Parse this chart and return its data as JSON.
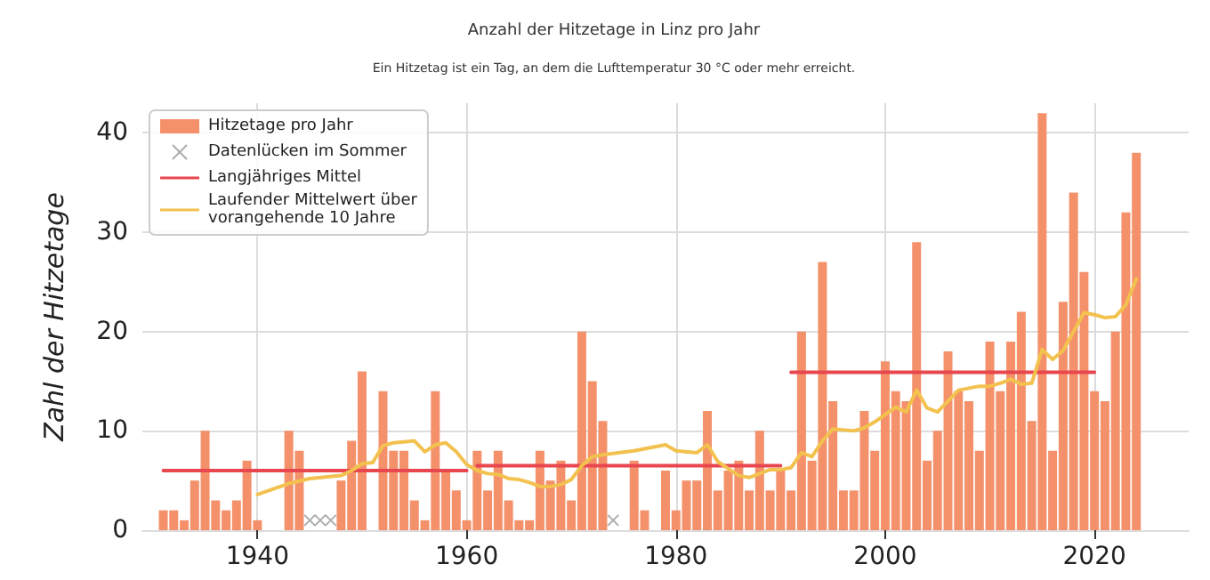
{
  "chart_data": {
    "type": "bar",
    "title": "Anzahl der Hitzetage in Linz pro Jahr",
    "subtitle": "Ein Hitzetag ist ein Tag, an dem die Lufttemperatur 30 °C oder mehr erreicht.",
    "ylabel": "Zahl der Hitzetage",
    "x": [
      1931,
      1932,
      1933,
      1934,
      1935,
      1936,
      1937,
      1938,
      1939,
      1940,
      1941,
      1942,
      1943,
      1944,
      1945,
      1946,
      1947,
      1948,
      1949,
      1950,
      1951,
      1952,
      1953,
      1954,
      1955,
      1956,
      1957,
      1958,
      1959,
      1960,
      1961,
      1962,
      1963,
      1964,
      1965,
      1966,
      1967,
      1968,
      1969,
      1970,
      1971,
      1972,
      1973,
      1974,
      1975,
      1976,
      1977,
      1978,
      1979,
      1980,
      1981,
      1982,
      1983,
      1984,
      1985,
      1986,
      1987,
      1988,
      1989,
      1990,
      1991,
      1992,
      1993,
      1994,
      1995,
      1996,
      1997,
      1998,
      1999,
      2000,
      2001,
      2002,
      2003,
      2004,
      2005,
      2006,
      2007,
      2008,
      2009,
      2010,
      2011,
      2012,
      2013,
      2014,
      2015,
      2016,
      2017,
      2018,
      2019,
      2020,
      2021,
      2022,
      2023,
      2024
    ],
    "series": [
      {
        "name": "Hitzetage pro Jahr",
        "color": "#f4916b",
        "values": [
          2,
          2,
          1,
          5,
          10,
          3,
          2,
          3,
          7,
          1,
          0,
          0,
          10,
          8,
          null,
          null,
          null,
          5,
          9,
          16,
          0,
          14,
          8,
          8,
          3,
          1,
          14,
          6,
          4,
          1,
          8,
          4,
          8,
          3,
          1,
          1,
          8,
          5,
          7,
          3,
          20,
          15,
          11,
          null,
          0,
          7,
          2,
          0,
          6,
          2,
          5,
          5,
          12,
          4,
          6,
          7,
          4,
          10,
          4,
          6,
          4,
          20,
          7,
          27,
          13,
          4,
          4,
          12,
          8,
          17,
          14,
          13,
          29,
          7,
          10,
          18,
          14,
          13,
          8,
          19,
          14,
          19,
          22,
          11,
          42,
          8,
          23,
          34,
          26,
          14,
          13,
          20,
          32,
          38
        ]
      },
      {
        "name": "Datenlücken im Sommer",
        "type": "scatter",
        "marker": "cross",
        "color": "#999999",
        "x": [
          1945,
          1946,
          1947,
          1974
        ],
        "values": [
          1,
          1,
          1,
          1
        ]
      },
      {
        "name": "Langjähriges Mittel",
        "type": "line",
        "color": "#e8474f",
        "x": [
          1931,
          1960,
          1960.5,
          1961,
          1990,
          1990.5,
          1991,
          2020
        ],
        "values": [
          6,
          6,
          null,
          6.5,
          6.5,
          null,
          15.9,
          15.9
        ]
      },
      {
        "name": "Laufender Mittelwert über\nvorangehende 10 Jahre",
        "type": "line",
        "color": "#f2c14e",
        "x": [
          1940,
          1943,
          1945,
          1948,
          1949,
          1950,
          1951,
          1952,
          1953,
          1954,
          1955,
          1956,
          1957,
          1958,
          1959,
          1960,
          1961,
          1962,
          1963,
          1964,
          1965,
          1966,
          1967,
          1968,
          1969,
          1970,
          1971,
          1972,
          1973,
          1976,
          1979,
          1980,
          1982,
          1983,
          1984,
          1986,
          1987,
          1988,
          1989,
          1990,
          1991,
          1992,
          1993,
          1994,
          1995,
          1997,
          1998,
          1999,
          2001,
          2002,
          2003,
          2004,
          2005,
          2006,
          2007,
          2009,
          2010,
          2011,
          2012,
          2013,
          2014,
          2015,
          2016,
          2017,
          2018,
          2019,
          2020,
          2021,
          2022,
          2023,
          2024
        ],
        "values": [
          3.6,
          4.7,
          5.2,
          5.5,
          6,
          6.7,
          6.8,
          8.5,
          8.8,
          8.9,
          9,
          7.9,
          8.6,
          8.8,
          7.9,
          6.6,
          6,
          5.7,
          5.6,
          5.2,
          5.1,
          4.8,
          4.4,
          4.4,
          4.6,
          5.1,
          6.5,
          7.4,
          7.6,
          8,
          8.6,
          8,
          7.8,
          8.6,
          6.9,
          5.5,
          5.3,
          5.7,
          6.1,
          6.1,
          6.3,
          7.8,
          7.4,
          9,
          10.2,
          10,
          10.3,
          10.9,
          12.4,
          11.9,
          14.1,
          12.3,
          11.9,
          13,
          14.1,
          14.5,
          14.5,
          14.8,
          15.2,
          14.7,
          14.8,
          18.2,
          17.2,
          18.1,
          20,
          21.9,
          21.7,
          21.4,
          21.5,
          22.7,
          25.3
        ]
      }
    ],
    "xlim": [
      1929,
      2029
    ],
    "xticks": [
      1940,
      1960,
      1980,
      2000,
      2020
    ],
    "ylim": [
      0,
      43
    ],
    "yticks": [
      0,
      10,
      20,
      30,
      40
    ],
    "grid": true,
    "legend": "top left"
  }
}
